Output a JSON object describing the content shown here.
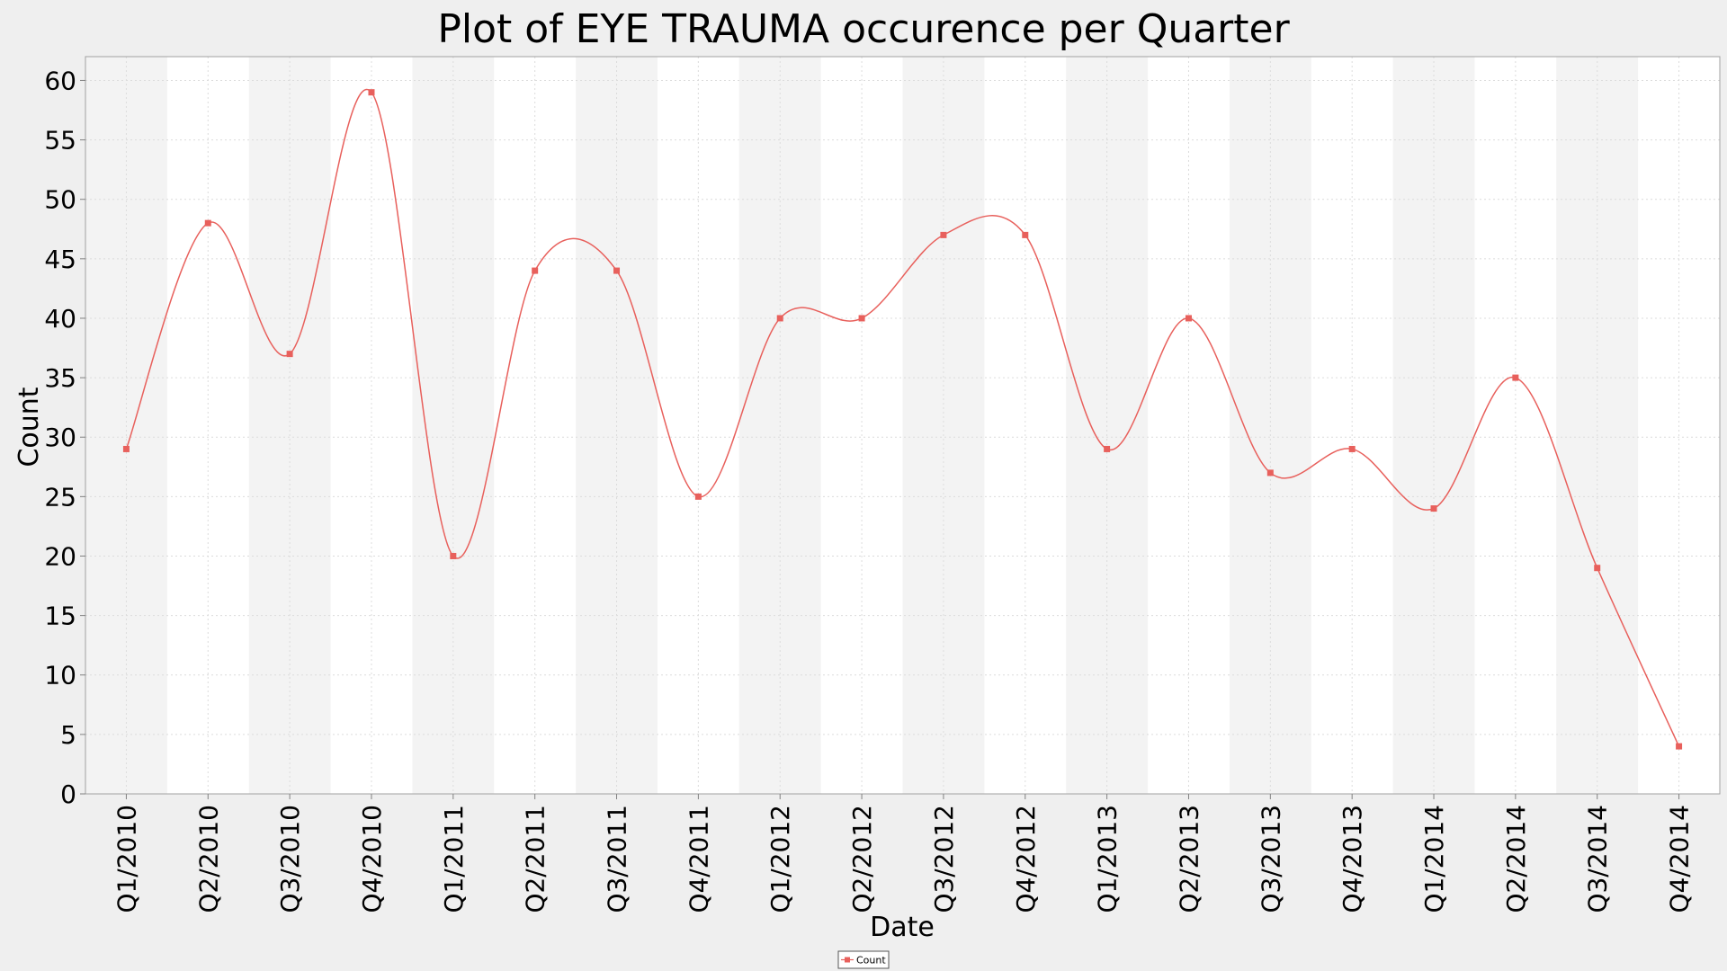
{
  "chart_data": {
    "type": "line",
    "title": "Plot of EYE TRAUMA occurence per Quarter",
    "xlabel": "Date",
    "ylabel": "Count",
    "categories": [
      "Q1/2010",
      "Q2/2010",
      "Q3/2010",
      "Q4/2010",
      "Q1/2011",
      "Q2/2011",
      "Q3/2011",
      "Q4/2011",
      "Q1/2012",
      "Q2/2012",
      "Q3/2012",
      "Q4/2012",
      "Q1/2013",
      "Q2/2013",
      "Q3/2013",
      "Q4/2013",
      "Q1/2014",
      "Q2/2014",
      "Q3/2014",
      "Q4/2014"
    ],
    "series": [
      {
        "name": "Count",
        "color": "#e8605c",
        "values": [
          29,
          48,
          37,
          59,
          20,
          44,
          44,
          25,
          40,
          40,
          47,
          47,
          29,
          40,
          27,
          29,
          24,
          35,
          19,
          4
        ]
      }
    ],
    "ylim": [
      0,
      62
    ],
    "yticks": [
      0,
      5,
      10,
      15,
      20,
      25,
      30,
      35,
      40,
      45,
      50,
      55,
      60
    ],
    "grid": true,
    "smoothed": true,
    "legend_position": "bottom-center",
    "colors": {
      "background": "#efefef",
      "plot_band_light": "#ffffff",
      "plot_band_dark": "#f3f3f3",
      "grid": "#dcdcdc",
      "line": "#e8605c"
    }
  }
}
